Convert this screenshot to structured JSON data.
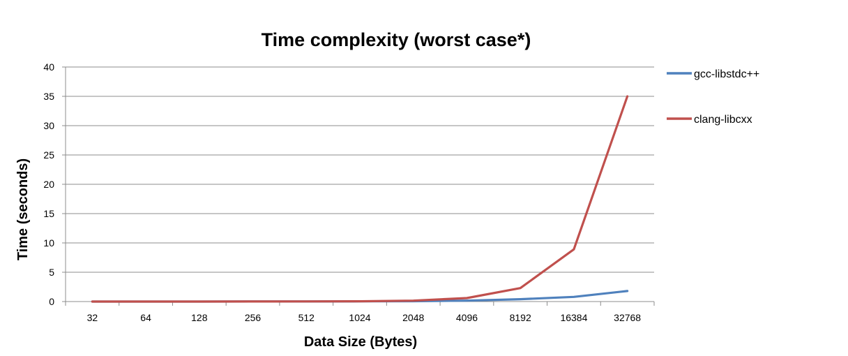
{
  "chart_data": {
    "type": "line",
    "title": "Time complexity (worst case*)",
    "xlabel": "Data Size (Bytes)",
    "ylabel": "Time (seconds)",
    "categories": [
      "32",
      "64",
      "128",
      "256",
      "512",
      "1024",
      "2048",
      "4096",
      "8192",
      "16384",
      "32768"
    ],
    "ylim": [
      0,
      40
    ],
    "yticks": [
      "0",
      "5",
      "10",
      "15",
      "20",
      "25",
      "30",
      "35",
      "40"
    ],
    "grid": true,
    "legend_position": "right",
    "series": [
      {
        "name": "gcc-libstdc++",
        "color": "#4f81bd",
        "values": [
          0.001,
          0.002,
          0.004,
          0.008,
          0.015,
          0.03,
          0.06,
          0.15,
          0.4,
          0.8,
          1.8
        ]
      },
      {
        "name": "clang-libcxx",
        "color": "#c0504d",
        "values": [
          0.001,
          0.002,
          0.005,
          0.01,
          0.02,
          0.05,
          0.15,
          0.6,
          2.3,
          8.9,
          35.0
        ]
      }
    ]
  }
}
